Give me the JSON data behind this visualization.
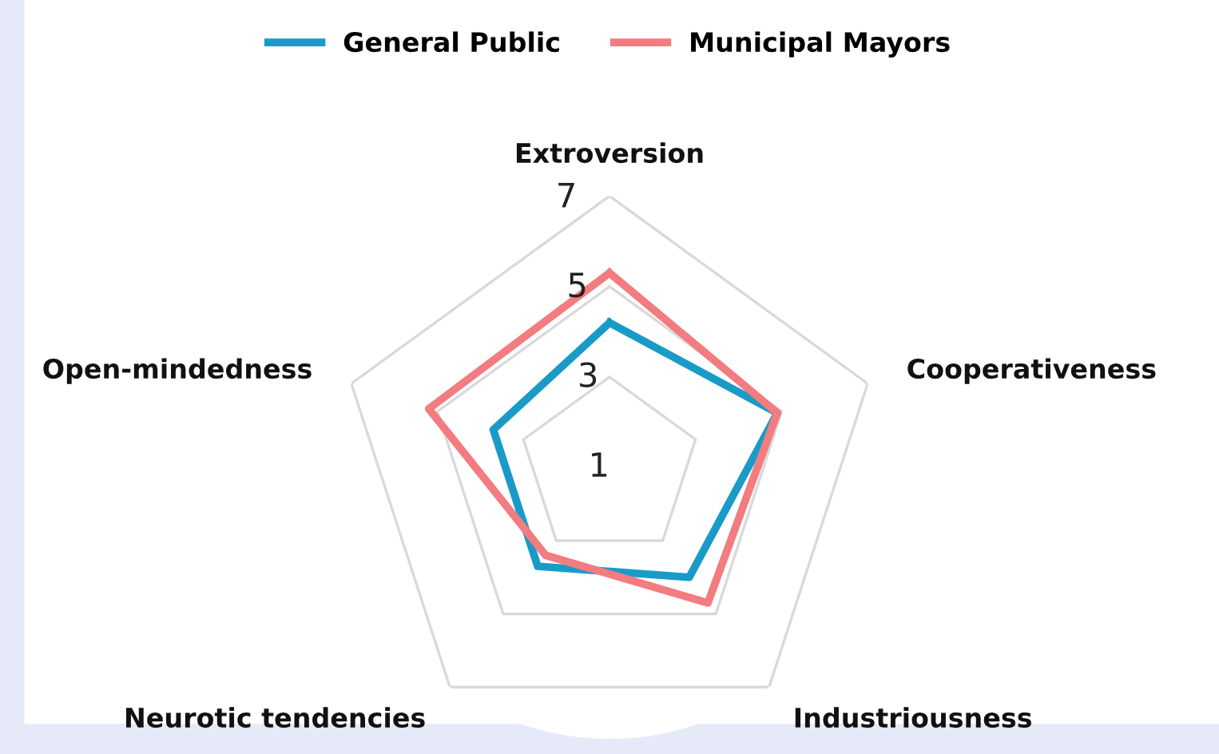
{
  "chart_data": {
    "type": "radar",
    "categories": [
      "Extroversion",
      "Cooperativeness",
      "Industriousness",
      "Neurotic tendencies",
      "Open-mindedness"
    ],
    "series": [
      {
        "name": "General Public",
        "color": "#1a9bc7",
        "values": [
          4.2,
          4.9,
          4.0,
          3.7,
          3.7
        ]
      },
      {
        "name": "Municipal Mayors",
        "color": "#f27c80",
        "values": [
          5.3,
          4.9,
          4.7,
          3.4,
          5.2
        ]
      }
    ],
    "ylim": [
      1,
      7
    ],
    "yticks": [
      1,
      3,
      5,
      7
    ],
    "grid": true,
    "legend": "top"
  }
}
